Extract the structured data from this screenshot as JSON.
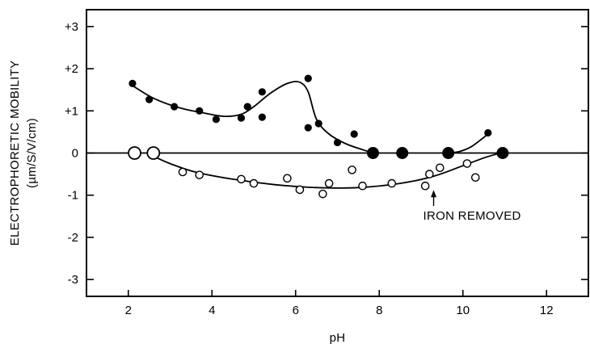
{
  "chart_data": {
    "type": "scatter",
    "xlabel": "pH",
    "ylabel_line1": "ELECTROPHORETIC MOBILITY",
    "ylabel_line2": "(µm/S/V/cm)",
    "xlim": [
      1,
      13
    ],
    "ylim": [
      -3.4,
      3.4
    ],
    "x_ticks": [
      2,
      4,
      6,
      8,
      10,
      12
    ],
    "y_ticks": [
      3,
      2,
      1,
      0,
      -1,
      -2,
      -3
    ],
    "y_tick_labels": [
      "+3",
      "+2",
      "+1",
      "0",
      "-1",
      "-2",
      "-3"
    ],
    "zero_line": true,
    "grid": false,
    "annotation": {
      "text": "IRON REMOVED",
      "points_to": [
        9.3,
        -0.78
      ]
    },
    "series": [
      {
        "marker": "filled-circle",
        "points": [
          [
            2.1,
            1.65
          ],
          [
            2.5,
            1.27
          ],
          [
            3.1,
            1.1
          ],
          [
            3.7,
            1.0
          ],
          [
            4.1,
            0.8
          ],
          [
            4.7,
            0.83
          ],
          [
            4.85,
            1.1
          ],
          [
            5.2,
            1.45
          ],
          [
            5.2,
            0.85
          ],
          [
            6.3,
            1.77
          ],
          [
            6.3,
            0.6
          ],
          [
            6.55,
            0.7
          ],
          [
            7.0,
            0.25
          ],
          [
            7.4,
            0.45
          ],
          [
            10.6,
            0.48
          ]
        ],
        "large_points": [
          [
            7.85,
            0.0
          ],
          [
            8.55,
            0.0
          ],
          [
            9.65,
            0.0
          ],
          [
            10.95,
            0.0
          ]
        ],
        "curve": [
          [
            2.1,
            1.6
          ],
          [
            2.6,
            1.3
          ],
          [
            3.2,
            1.08
          ],
          [
            3.8,
            0.95
          ],
          [
            4.3,
            0.87
          ],
          [
            4.7,
            0.92
          ],
          [
            5.0,
            1.1
          ],
          [
            5.4,
            1.42
          ],
          [
            5.8,
            1.65
          ],
          [
            6.1,
            1.68
          ],
          [
            6.3,
            1.45
          ],
          [
            6.5,
            0.8
          ],
          [
            6.8,
            0.45
          ],
          [
            7.2,
            0.22
          ],
          [
            7.6,
            0.08
          ],
          [
            7.85,
            0.0
          ]
        ],
        "curve2": [
          [
            9.65,
            0.0
          ],
          [
            9.9,
            0.03
          ],
          [
            10.2,
            0.15
          ],
          [
            10.6,
            0.45
          ]
        ]
      },
      {
        "name": "IRON REMOVED",
        "marker": "open-circle",
        "points": [
          [
            3.3,
            -0.45
          ],
          [
            3.7,
            -0.52
          ],
          [
            4.7,
            -0.62
          ],
          [
            5.0,
            -0.72
          ],
          [
            5.8,
            -0.6
          ],
          [
            6.1,
            -0.87
          ],
          [
            6.65,
            -0.97
          ],
          [
            6.8,
            -0.72
          ],
          [
            7.6,
            -0.78
          ],
          [
            7.35,
            -0.4
          ],
          [
            8.3,
            -0.72
          ],
          [
            9.1,
            -0.78
          ],
          [
            9.2,
            -0.5
          ],
          [
            9.45,
            -0.35
          ],
          [
            10.1,
            -0.25
          ],
          [
            10.3,
            -0.58
          ]
        ],
        "large_points": [
          [
            2.15,
            0.0
          ],
          [
            2.6,
            0.0
          ]
        ],
        "curve": [
          [
            2.55,
            -0.05
          ],
          [
            3.0,
            -0.25
          ],
          [
            3.6,
            -0.45
          ],
          [
            4.5,
            -0.62
          ],
          [
            5.5,
            -0.75
          ],
          [
            6.5,
            -0.82
          ],
          [
            7.5,
            -0.82
          ],
          [
            8.5,
            -0.72
          ],
          [
            9.3,
            -0.55
          ],
          [
            10.0,
            -0.3
          ],
          [
            10.55,
            -0.1
          ],
          [
            10.9,
            0.0
          ]
        ]
      }
    ]
  }
}
